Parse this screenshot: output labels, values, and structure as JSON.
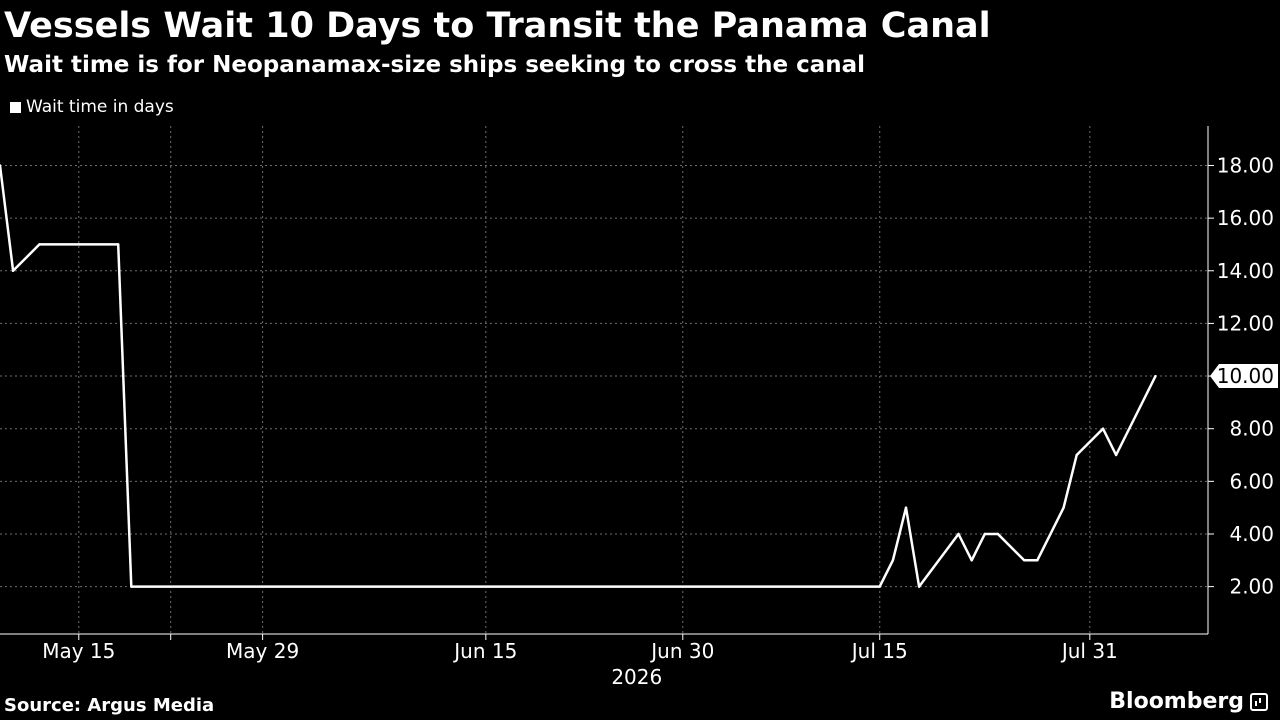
{
  "colors": {
    "background": "#000000",
    "line": "#ffffff",
    "grid": "#6e6e6e",
    "text": "#ffffff"
  },
  "chart_data": {
    "type": "line",
    "title": "Vessels Wait 10 Days to Transit the Panama Canal",
    "subtitle": "Wait time is for Neopanamax-size ships seeking to cross the canal",
    "series": [
      {
        "name": "Wait time in days",
        "points": [
          {
            "x": "2026-05-09",
            "y": 18
          },
          {
            "x": "2026-05-10",
            "y": 14
          },
          {
            "x": "2026-05-12",
            "y": 15
          },
          {
            "x": "2026-05-18",
            "y": 15
          },
          {
            "x": "2026-05-19",
            "y": 2
          },
          {
            "x": "2026-07-15",
            "y": 2
          },
          {
            "x": "2026-07-16",
            "y": 3
          },
          {
            "x": "2026-07-17",
            "y": 5
          },
          {
            "x": "2026-07-18",
            "y": 2
          },
          {
            "x": "2026-07-21",
            "y": 4
          },
          {
            "x": "2026-07-22",
            "y": 3
          },
          {
            "x": "2026-07-23",
            "y": 4
          },
          {
            "x": "2026-07-24",
            "y": 4
          },
          {
            "x": "2026-07-26",
            "y": 3
          },
          {
            "x": "2026-07-27",
            "y": 3
          },
          {
            "x": "2026-07-29",
            "y": 5
          },
          {
            "x": "2026-07-30",
            "y": 7
          },
          {
            "x": "2026-08-01",
            "y": 8
          },
          {
            "x": "2026-08-02",
            "y": 7
          },
          {
            "x": "2026-08-05",
            "y": 10
          }
        ]
      }
    ],
    "x_ticks": [
      {
        "date": "2026-05-15",
        "label": "May 15"
      },
      {
        "date": "2026-05-29",
        "label": "May 29"
      },
      {
        "date": "2026-06-15",
        "label": "Jun 15"
      },
      {
        "date": "2026-06-30",
        "label": "Jun 30"
      },
      {
        "date": "2026-07-15",
        "label": "Jul 15"
      },
      {
        "date": "2026-07-31",
        "label": "Jul 31"
      }
    ],
    "x_grid_dates": [
      "2026-05-15",
      "2026-05-22",
      "2026-05-29",
      "2026-06-15",
      "2026-06-30",
      "2026-07-15",
      "2026-07-31"
    ],
    "x_year_label": "2026",
    "y_ticks": [
      2,
      4,
      6,
      8,
      10,
      12,
      14,
      16,
      18
    ],
    "y_tick_labels": [
      "2.00",
      "4.00",
      "6.00",
      "8.00",
      "10.00",
      "12.00",
      "14.00",
      "16.00",
      "18.00"
    ],
    "ylim": [
      0.2,
      19.5
    ],
    "last_value_label": "10.00",
    "y_axis_side": "right",
    "grid": true,
    "legend": "top-left"
  },
  "footer": {
    "source": "Source: Argus Media",
    "brand": "Bloomberg"
  },
  "icons": {
    "brand": "bloomberg-chart-icon"
  }
}
